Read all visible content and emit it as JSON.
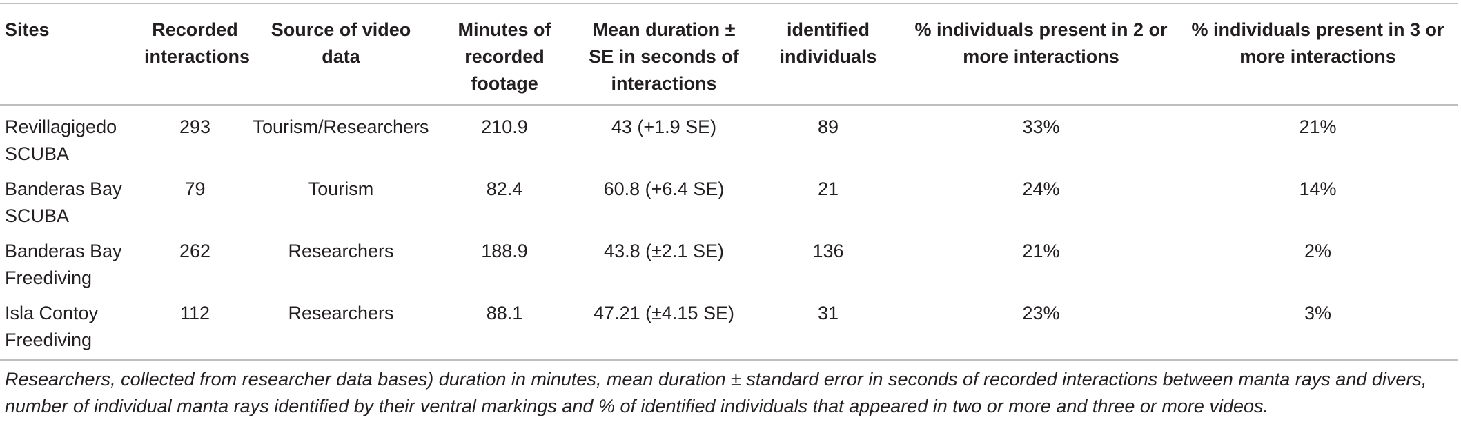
{
  "table": {
    "headers": [
      "Sites",
      "Recorded interactions",
      "Source of video data",
      "Minutes of recorded footage",
      "Mean duration ± SE in seconds of interactions",
      "identified individuals",
      "% individuals present in 2 or more interactions",
      "% individuals present in 3 or more interactions"
    ],
    "rows": [
      [
        "Revillagigedo SCUBA",
        "293",
        "Tourism/Researchers",
        "210.9",
        "43 (+1.9 SE)",
        "89",
        "33%",
        "21%"
      ],
      [
        "Banderas Bay SCUBA",
        "79",
        "Tourism",
        "82.4",
        "60.8 (+6.4 SE)",
        "21",
        "24%",
        "14%"
      ],
      [
        "Banderas Bay Freediving",
        "262",
        "Researchers",
        "188.9",
        "43.8 (±2.1 SE)",
        "136",
        "21%",
        "2%"
      ],
      [
        "Isla Contoy Freediving",
        "112",
        "Researchers",
        "88.1",
        "47.21 (±4.15 SE)",
        "31",
        "23%",
        "3%"
      ]
    ]
  },
  "caption": "Researchers, collected from researcher data bases) duration in minutes, mean duration ± standard error in seconds of recorded interactions between manta rays and divers, number of individual manta rays identified by their ventral markings and % of identified individuals that appeared in two or more and three or more videos."
}
